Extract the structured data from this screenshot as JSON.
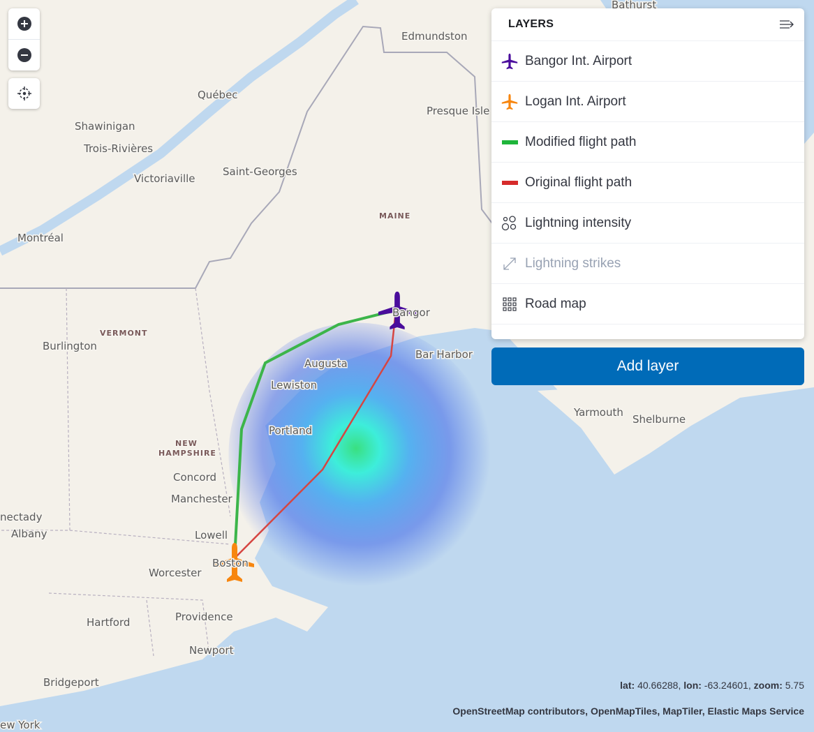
{
  "map": {
    "labels": [
      "Edmundston",
      "Québec",
      "Presque Isle",
      "Shawinigan",
      "Trois-Rivières",
      "Victoriaville",
      "Saint-Georges",
      "MAINE",
      "Montréal",
      "VERMONT",
      "Burlington",
      "Bangor",
      "Augusta",
      "Bar Harbor",
      "Lewiston",
      "Portland",
      "NEW",
      "HAMPSHIRE",
      "Concord",
      "Manchester",
      "nectady",
      "Albany",
      "Lowell",
      "Boston",
      "Worcester",
      "Hartford",
      "Providence",
      "Newport",
      "Bridgeport",
      "ew York",
      "Yarmouth",
      "Shelburne",
      "Bathurst"
    ],
    "colors": {
      "land": "#f4f1ea",
      "water": "#bfd8ef",
      "modified_path": "#3cb54a",
      "original_path": "#d64541",
      "bangor": "#4a0d9c",
      "logan": "#f7860f"
    }
  },
  "controls": {
    "zoom_in": "plus-icon",
    "zoom_out": "minus-icon",
    "locate": "crosshair-icon"
  },
  "layers_panel": {
    "title": "LAYERS",
    "collapse_icon": "collapse-right-icon",
    "items": [
      {
        "label": "Bangor Int. Airport",
        "icon": "airplane-icon",
        "color": "#4a0d9c",
        "visible": true
      },
      {
        "label": "Logan Int. Airport",
        "icon": "airplane-icon",
        "color": "#f7860f",
        "visible": true
      },
      {
        "label": "Modified flight path",
        "icon": "line-icon",
        "color": "#1eb53a",
        "visible": true
      },
      {
        "label": "Original flight path",
        "icon": "line-icon",
        "color": "#d62b2b",
        "visible": true
      },
      {
        "label": "Lightning intensity",
        "icon": "heatmap-circles-icon",
        "visible": true
      },
      {
        "label": "Lightning strikes",
        "icon": "resize-arrow-icon",
        "visible": false
      },
      {
        "label": "Road map",
        "icon": "grid-icon",
        "visible": true
      }
    ],
    "add_layer": "Add layer"
  },
  "status": {
    "lat_label": "lat:",
    "lat": "40.66288",
    "lon_label": "lon:",
    "lon": "-63.24601",
    "zoom_label": "zoom:",
    "zoom": "5.75",
    "attribution": "OpenStreetMap contributors, OpenMapTiles, MapTiler, Elastic Maps Service"
  }
}
